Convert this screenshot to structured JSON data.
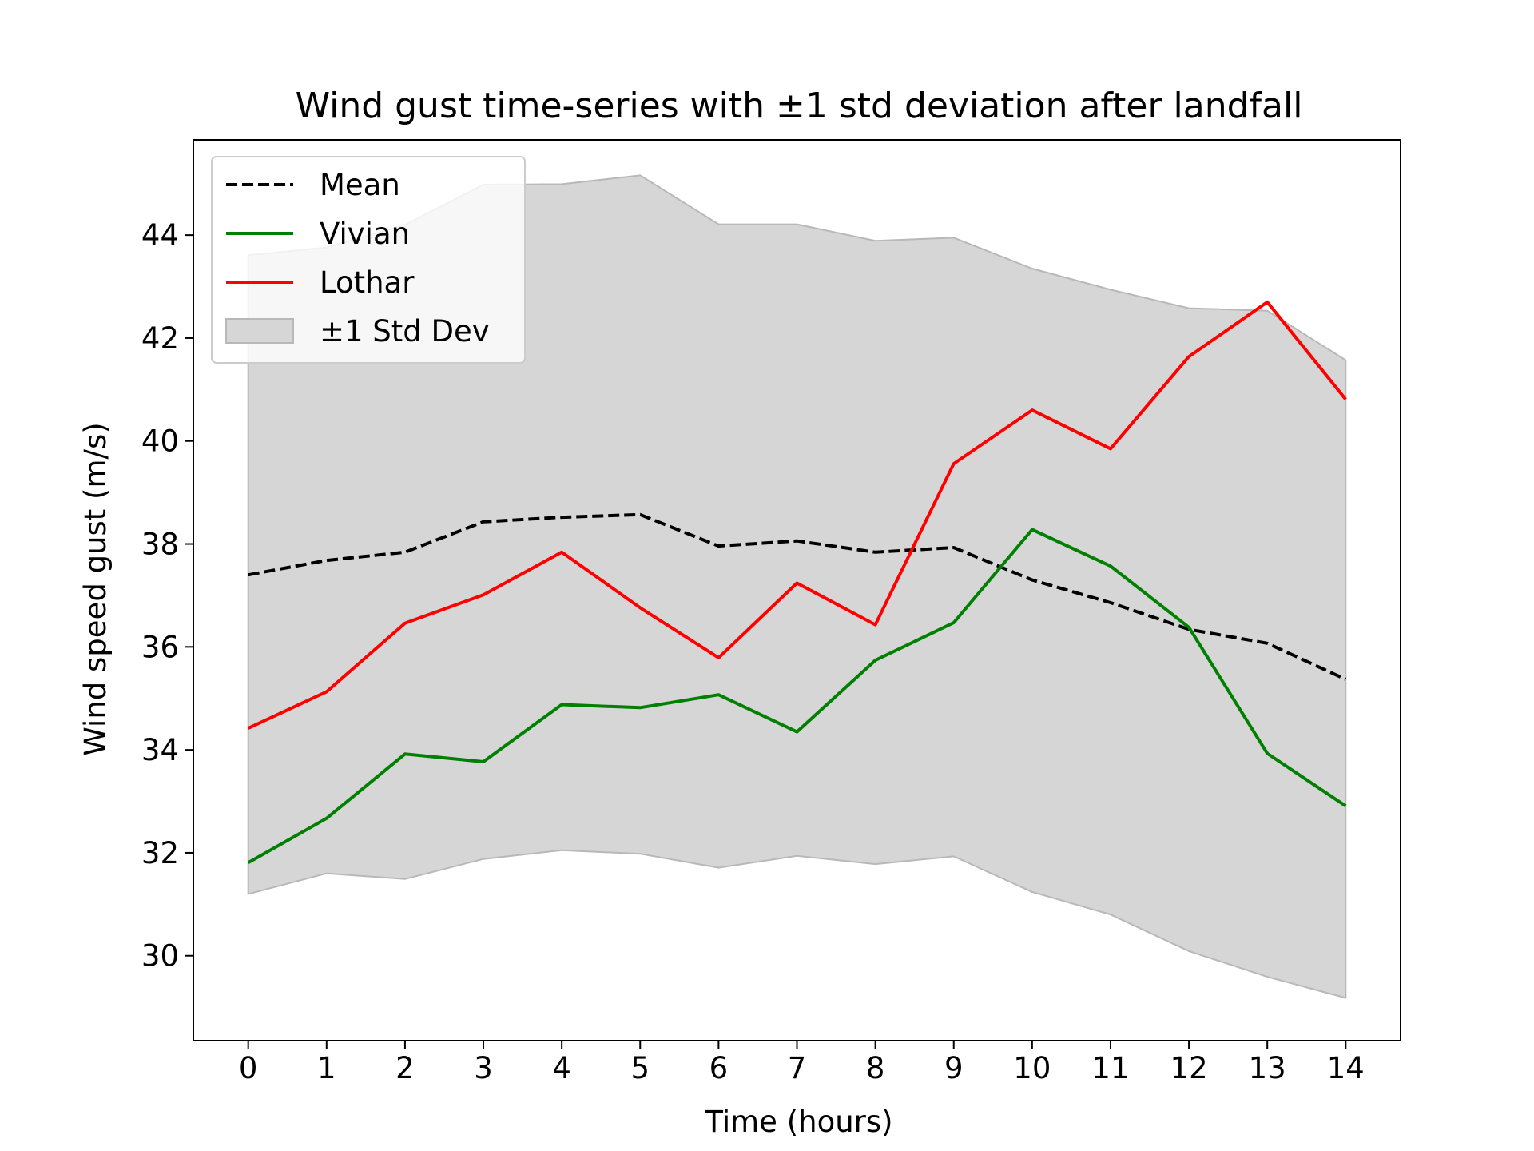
{
  "chart_data": {
    "type": "line",
    "title": "Wind gust time-series with ±1 std deviation after landfall",
    "xlabel": "Time (hours)",
    "ylabel": "Wind speed gust (m/s)",
    "x": [
      0,
      1,
      2,
      3,
      4,
      5,
      6,
      7,
      8,
      9,
      10,
      11,
      12,
      13,
      14
    ],
    "xlim": [
      -0.7,
      14.7
    ],
    "ylim": [
      28.35,
      45.85
    ],
    "xticks": [
      0,
      1,
      2,
      3,
      4,
      5,
      6,
      7,
      8,
      9,
      10,
      11,
      12,
      13,
      14
    ],
    "yticks": [
      30,
      32,
      34,
      36,
      38,
      40,
      42,
      44
    ],
    "grid": false,
    "legend_position": "upper-left",
    "series": [
      {
        "name": "Mean",
        "color": "#000000",
        "style": "dashed",
        "values": [
          37.4,
          37.68,
          37.84,
          38.43,
          38.52,
          38.57,
          37.96,
          38.06,
          37.84,
          37.93,
          37.3,
          36.86,
          36.34,
          36.07,
          35.37
        ]
      },
      {
        "name": "Vivian",
        "color": "#008000",
        "style": "solid",
        "values": [
          31.81,
          32.67,
          33.92,
          33.77,
          34.88,
          34.82,
          35.07,
          34.35,
          35.74,
          36.47,
          38.28,
          37.57,
          36.38,
          33.93,
          32.91
        ]
      },
      {
        "name": "Lothar",
        "color": "#ff0000",
        "style": "solid",
        "values": [
          34.42,
          35.13,
          36.46,
          37.01,
          37.84,
          36.76,
          35.79,
          37.24,
          36.43,
          39.56,
          40.6,
          39.85,
          41.64,
          42.7,
          40.81
        ]
      }
    ],
    "band": {
      "name": "±1 Std Dev",
      "color": "#d6d6d6",
      "edge_color": "#b8b8b8",
      "lower": [
        31.2,
        31.6,
        31.49,
        31.88,
        32.05,
        31.98,
        31.71,
        31.94,
        31.78,
        31.93,
        31.24,
        30.8,
        30.09,
        29.59,
        29.18
      ],
      "upper": [
        43.61,
        43.76,
        44.2,
        44.98,
        44.99,
        45.16,
        44.21,
        44.21,
        43.89,
        43.95,
        43.35,
        42.94,
        42.58,
        42.53,
        41.57
      ]
    }
  }
}
